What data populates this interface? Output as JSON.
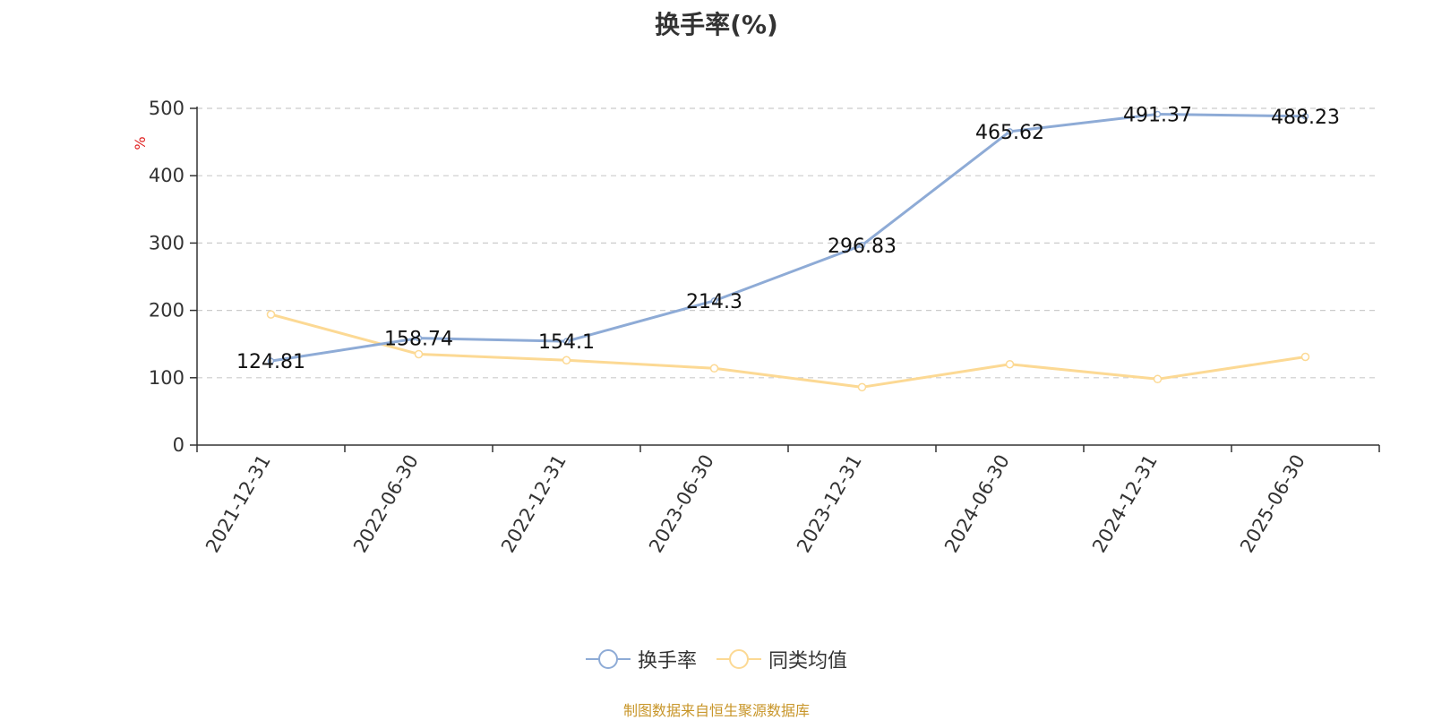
{
  "chart_data": {
    "type": "line",
    "title": "换手率(%)",
    "ylabel": "%",
    "ylim": [
      0,
      500
    ],
    "yticks": [
      0,
      100,
      200,
      300,
      400,
      500
    ],
    "grid": true,
    "legend_position": "bottom",
    "categories": [
      "2021-12-31",
      "2022-06-30",
      "2022-12-31",
      "2023-06-30",
      "2023-12-31",
      "2024-06-30",
      "2024-12-31",
      "2025-06-30"
    ],
    "series": [
      {
        "name": "换手率",
        "color": "#8eabd6",
        "values": [
          124.81,
          158.74,
          154.1,
          214.3,
          296.83,
          465.62,
          491.37,
          488.23
        ],
        "labels": [
          "124.81",
          "158.74",
          "154.1",
          "214.3",
          "296.83",
          "465.62",
          "491.37",
          "488.23"
        ]
      },
      {
        "name": "同类均值",
        "color": "#fcd994",
        "values": [
          194,
          135,
          126,
          114,
          86,
          120,
          98,
          131
        ]
      }
    ]
  },
  "source_note": "制图数据来自恒生聚源数据库",
  "colors": {
    "axis": "#333333",
    "grid": "#cccccc",
    "ylabel": "#e02020"
  }
}
